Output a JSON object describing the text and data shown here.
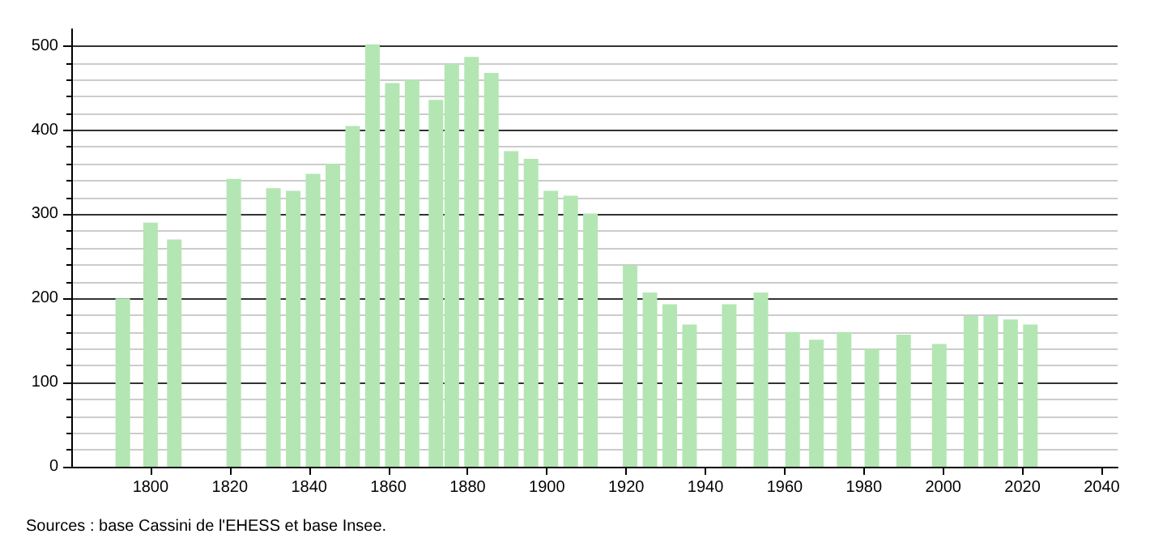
{
  "chart_data": {
    "type": "bar",
    "x": [
      1793,
      1800,
      1806,
      1821,
      1831,
      1836,
      1841,
      1846,
      1851,
      1856,
      1861,
      1866,
      1872,
      1876,
      1881,
      1886,
      1891,
      1896,
      1901,
      1906,
      1911,
      1921,
      1926,
      1931,
      1936,
      1946,
      1954,
      1962,
      1968,
      1975,
      1982,
      1990,
      1999,
      2007,
      2012,
      2017,
      2022
    ],
    "values": [
      200,
      290,
      270,
      342,
      331,
      328,
      348,
      360,
      405,
      502,
      456,
      460,
      436,
      479,
      487,
      468,
      375,
      366,
      328,
      322,
      301,
      239,
      207,
      193,
      169,
      193,
      207,
      160,
      151,
      160,
      140,
      157,
      146,
      179,
      179,
      175,
      169
    ],
    "color": "#b3e6b3",
    "xlim": [
      1780,
      2044
    ],
    "xticks": [
      1800,
      1820,
      1840,
      1860,
      1880,
      1900,
      1920,
      1940,
      1960,
      1980,
      2000,
      2020,
      2040
    ],
    "ylim": [
      0,
      520
    ],
    "yticks": [
      0,
      100,
      200,
      300,
      400,
      500
    ],
    "grid": "y",
    "annotations": [
      "Sources : base Cassini de l'EHESS et base Insee."
    ]
  }
}
